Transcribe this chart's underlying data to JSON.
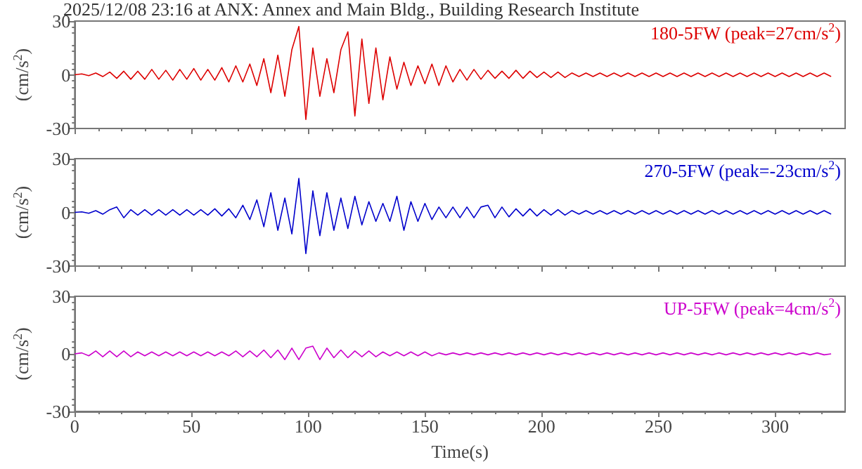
{
  "chart_data": [
    {
      "type": "line",
      "title": "2025/12/08 23:16 at ANX: Annex and Main Bldg., Building Research Institute",
      "ylabel": "(cm/s$^{2}$)",
      "xlim": [
        0,
        330
      ],
      "xticks": [
        0,
        50,
        100,
        150,
        200,
        250,
        300
      ],
      "ylim": [
        -30,
        30
      ],
      "yticks": [
        -30,
        0,
        30
      ],
      "tick_labels": "y",
      "grid": false,
      "x": [
        0,
        3,
        6,
        9,
        12,
        15,
        18,
        21,
        24,
        27,
        30,
        33,
        36,
        39,
        42,
        45,
        48,
        51,
        54,
        57,
        60,
        63,
        66,
        69,
        72,
        75,
        78,
        81,
        84,
        87,
        90,
        93,
        96,
        99,
        102,
        105,
        108,
        111,
        114,
        117,
        120,
        123,
        126,
        129,
        132,
        135,
        138,
        141,
        144,
        147,
        150,
        153,
        156,
        159,
        162,
        165,
        168,
        171,
        174,
        177,
        180,
        183,
        186,
        189,
        192,
        195,
        198,
        201,
        204,
        207,
        210,
        213,
        216,
        219,
        222,
        225,
        228,
        231,
        234,
        237,
        240,
        243,
        246,
        249,
        252,
        255,
        258,
        261,
        264,
        267,
        270,
        273,
        276,
        279,
        282,
        285,
        288,
        291,
        294,
        297,
        300,
        303,
        306,
        309,
        312,
        315,
        318,
        321,
        324
      ],
      "series": [
        {
          "name": "180-5FW (peak=27cm/s$^{2}$)",
          "color": "#dd0000",
          "values": [
            0,
            0.5,
            -0.5,
            1,
            -1,
            1.5,
            -2,
            2,
            -2.5,
            2,
            -2.5,
            3,
            -2.5,
            2.5,
            -3,
            3,
            -2.5,
            3.5,
            -3,
            3,
            -3,
            4,
            -4,
            5,
            -4,
            6,
            -6,
            9,
            -10,
            11,
            -12,
            14,
            27,
            -25,
            15,
            -12,
            9,
            -10,
            14,
            24,
            -23,
            20,
            -16,
            15,
            -14,
            10,
            -8,
            7,
            -6,
            5,
            -5,
            6,
            -6,
            5,
            -4,
            3,
            -3,
            3,
            -2.5,
            2.5,
            -2,
            2,
            -2,
            2.5,
            -2,
            2,
            -1.5,
            1.5,
            -1.5,
            1.5,
            -1.5,
            1,
            -1,
            1,
            -1,
            1,
            -1,
            1,
            -1,
            1,
            -1,
            1,
            -1,
            1,
            -1,
            1,
            -1,
            1,
            -1,
            1,
            -1,
            1,
            -1,
            1,
            -1,
            1,
            -1,
            1,
            -1,
            1,
            -1,
            1,
            -1,
            1,
            -1,
            1,
            -1,
            1,
            -1
          ]
        }
      ]
    },
    {
      "type": "line",
      "ylabel": "(cm/s$^{2}$)",
      "xlim": [
        0,
        330
      ],
      "xticks": [
        0,
        50,
        100,
        150,
        200,
        250,
        300
      ],
      "ylim": [
        -30,
        30
      ],
      "yticks": [
        -30,
        0,
        30
      ],
      "tick_labels": "y",
      "grid": false,
      "x": [
        0,
        3,
        6,
        9,
        12,
        15,
        18,
        21,
        24,
        27,
        30,
        33,
        36,
        39,
        42,
        45,
        48,
        51,
        54,
        57,
        60,
        63,
        66,
        69,
        72,
        75,
        78,
        81,
        84,
        87,
        90,
        93,
        96,
        99,
        102,
        105,
        108,
        111,
        114,
        117,
        120,
        123,
        126,
        129,
        132,
        135,
        138,
        141,
        144,
        147,
        150,
        153,
        156,
        159,
        162,
        165,
        168,
        171,
        174,
        177,
        180,
        183,
        186,
        189,
        192,
        195,
        198,
        201,
        204,
        207,
        210,
        213,
        216,
        219,
        222,
        225,
        228,
        231,
        234,
        237,
        240,
        243,
        246,
        249,
        252,
        255,
        258,
        261,
        264,
        267,
        270,
        273,
        276,
        279,
        282,
        285,
        288,
        291,
        294,
        297,
        300,
        303,
        306,
        309,
        312,
        315,
        318,
        321,
        324
      ],
      "series": [
        {
          "name": "270-5FW (peak=-23cm/s$^{2}$)",
          "color": "#0000cc",
          "values": [
            0,
            0.3,
            -0.5,
            1,
            -1,
            1.5,
            3,
            -3,
            1.5,
            -1.5,
            1.5,
            -1.5,
            1.5,
            -1.5,
            1.5,
            -1.5,
            1.5,
            -1.5,
            1.5,
            -1.5,
            2,
            -2,
            2,
            -3,
            4,
            -4,
            7,
            -8,
            11,
            -10,
            8,
            -12,
            19,
            -23,
            12,
            -13,
            11,
            -10,
            8,
            -9,
            9,
            -7,
            6,
            -5,
            5,
            -5,
            9,
            -10,
            6,
            -5,
            5,
            -4,
            3,
            -3,
            3,
            -3,
            3,
            -3,
            3,
            4,
            -3,
            3,
            -2.5,
            2,
            -2,
            2,
            -2,
            1.5,
            -1.5,
            1.5,
            -1.5,
            1,
            -1,
            1,
            -1,
            1,
            -1,
            1,
            -1,
            1,
            -1,
            1,
            -1,
            1,
            -1,
            1,
            -1,
            1,
            -1,
            1,
            -1,
            1,
            -1,
            1,
            -1,
            1,
            -1,
            1,
            -1,
            1,
            -1,
            1,
            -1,
            1,
            -1,
            1,
            -1,
            1,
            -1
          ]
        }
      ]
    },
    {
      "type": "line",
      "ylabel": "(cm/s$^{2}$)",
      "xlabel": "Time(s)",
      "xlim": [
        0,
        330
      ],
      "xticks": [
        0,
        50,
        100,
        150,
        200,
        250,
        300
      ],
      "ylim": [
        -30,
        30
      ],
      "yticks": [
        -30,
        0,
        30
      ],
      "grid": false,
      "x": [
        0,
        3,
        6,
        9,
        12,
        15,
        18,
        21,
        24,
        27,
        30,
        33,
        36,
        39,
        42,
        45,
        48,
        51,
        54,
        57,
        60,
        63,
        66,
        69,
        72,
        75,
        78,
        81,
        84,
        87,
        90,
        93,
        96,
        99,
        102,
        105,
        108,
        111,
        114,
        117,
        120,
        123,
        126,
        129,
        132,
        135,
        138,
        141,
        144,
        147,
        150,
        153,
        156,
        159,
        162,
        165,
        168,
        171,
        174,
        177,
        180,
        183,
        186,
        189,
        192,
        195,
        198,
        201,
        204,
        207,
        210,
        213,
        216,
        219,
        222,
        225,
        228,
        231,
        234,
        237,
        240,
        243,
        246,
        249,
        252,
        255,
        258,
        261,
        264,
        267,
        270,
        273,
        276,
        279,
        282,
        285,
        288,
        291,
        294,
        297,
        300,
        303,
        306,
        309,
        312,
        315,
        318,
        321,
        324
      ],
      "series": [
        {
          "name": "UP-5FW (peak=4cm/s$^{2}$)",
          "color": "#cc00cc",
          "values": [
            0,
            0.5,
            -1,
            1.5,
            -1.5,
            1.5,
            -1.5,
            1.5,
            -1.5,
            1,
            -1,
            1,
            -1,
            1,
            -1,
            1,
            -1,
            1,
            -1,
            1,
            -1,
            1,
            -1,
            1.5,
            -1.5,
            1.5,
            -1.5,
            2,
            -2,
            2,
            -3,
            3,
            -3,
            3,
            4,
            -3,
            3,
            -2,
            2,
            -2,
            1.5,
            -1.5,
            1.5,
            -1.5,
            1,
            -1,
            1,
            -1,
            1,
            -1,
            1,
            -1,
            0.5,
            -0.5,
            0.5,
            -0.5,
            0.5,
            -0.5,
            0.5,
            -0.5,
            0.5,
            -0.5,
            0.5,
            -0.5,
            0.5,
            -0.5,
            0.5,
            -0.5,
            0.5,
            -0.5,
            0.5,
            -0.5,
            0.5,
            -0.5,
            0.5,
            -0.5,
            0.5,
            -0.5,
            0.5,
            -0.5,
            0.5,
            -0.5,
            0.5,
            -0.5,
            0.5,
            -0.5,
            0.5,
            -0.5,
            0.5,
            -0.5,
            0.5,
            -0.5,
            0.5,
            -0.5,
            0.5,
            -0.5,
            0.5,
            -0.5,
            0.5,
            -0.5,
            0.5,
            -0.5,
            0.5,
            -0.5,
            0.5,
            -0.5,
            0.5,
            -0.5,
            0
          ]
        }
      ]
    }
  ]
}
